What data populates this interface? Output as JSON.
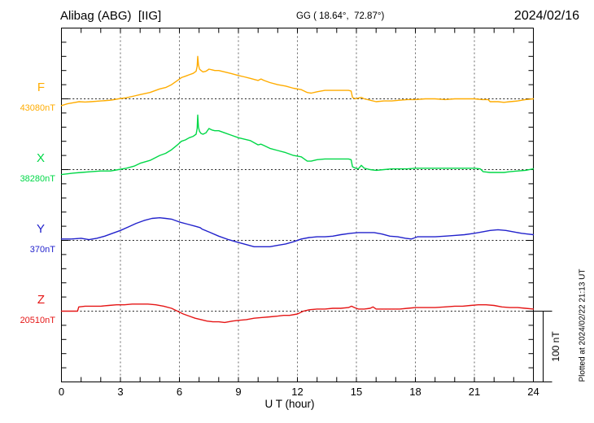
{
  "header": {
    "station": "Alibag (ABG)  [IIG]",
    "coords": "GG ( 18.64°,  72.87°)",
    "date": "2024/02/16"
  },
  "axes": {
    "xlabel": "U T (hour)",
    "x_ticks": [
      "0",
      "3",
      "6",
      "9",
      "12",
      "15",
      "18",
      "21",
      "24"
    ],
    "scale_bar_label": "100 nT",
    "plotted_at": "Plotted at 2024/02/22 21:13 UT"
  },
  "chart_data": {
    "type": "line",
    "title": "Alibag (ABG) [IIG] magnetogram — 2024/02/16",
    "xlabel": "U T (hour)",
    "x_range": [
      0,
      24
    ],
    "x_tick_interval_hours": 1,
    "x_gridline_interval_hours": 3,
    "y_small_tick_nT": 20,
    "baseline_spacing_nT": 100,
    "grid": "dotted vertical lines every 3 h; dotted horizontal line at each component baseline",
    "legend_position": "left margin, one colored label per component",
    "values_are_offsets_nT_from_baseline": true,
    "series": [
      {
        "name": "F",
        "baseline_label": "43080nT",
        "baseline_nT": 43080,
        "color": "#ffac00",
        "points": [
          [
            0,
            -9.5
          ],
          [
            0.3,
            -7
          ],
          [
            0.6,
            -5.5
          ],
          [
            0.9,
            -4
          ],
          [
            1.2,
            -4.5
          ],
          [
            1.5,
            -4
          ],
          [
            2,
            -3
          ],
          [
            2.5,
            -2
          ],
          [
            2.9,
            0
          ],
          [
            3.3,
            1.5
          ],
          [
            3.7,
            4
          ],
          [
            4,
            6
          ],
          [
            4.5,
            9
          ],
          [
            5,
            14
          ],
          [
            5.3,
            16
          ],
          [
            5.6,
            20
          ],
          [
            5.9,
            26
          ],
          [
            6.1,
            30
          ],
          [
            6.3,
            32
          ],
          [
            6.5,
            34
          ],
          [
            6.7,
            36
          ],
          [
            6.85,
            39
          ],
          [
            6.9,
            46
          ],
          [
            6.93,
            60
          ],
          [
            6.97,
            48
          ],
          [
            7.02,
            42
          ],
          [
            7.1,
            40
          ],
          [
            7.2,
            38
          ],
          [
            7.35,
            39
          ],
          [
            7.5,
            42
          ],
          [
            7.65,
            41
          ],
          [
            7.8,
            40
          ],
          [
            8,
            40
          ],
          [
            8.3,
            38
          ],
          [
            8.6,
            36
          ],
          [
            9,
            33
          ],
          [
            9.3,
            31
          ],
          [
            9.6,
            29
          ],
          [
            10,
            26
          ],
          [
            10.15,
            28
          ],
          [
            10.3,
            26
          ],
          [
            10.6,
            23
          ],
          [
            11,
            20
          ],
          [
            11.4,
            18
          ],
          [
            11.8,
            15
          ],
          [
            12.2,
            13
          ],
          [
            12.5,
            9
          ],
          [
            12.7,
            8
          ],
          [
            13,
            10
          ],
          [
            13.4,
            12
          ],
          [
            13.8,
            12
          ],
          [
            14.2,
            12
          ],
          [
            14.6,
            12
          ],
          [
            14.73,
            11
          ],
          [
            14.8,
            2
          ],
          [
            14.95,
            0
          ],
          [
            15.1,
            1
          ],
          [
            15.25,
            2
          ],
          [
            15.4,
            0
          ],
          [
            15.7,
            -2
          ],
          [
            16,
            -4
          ],
          [
            16.4,
            -3
          ],
          [
            16.8,
            -3
          ],
          [
            17.2,
            -2
          ],
          [
            17.6,
            -1
          ],
          [
            18,
            -1
          ],
          [
            18.5,
            0
          ],
          [
            19,
            0
          ],
          [
            19.5,
            -1
          ],
          [
            20,
            0
          ],
          [
            20.5,
            0
          ],
          [
            21,
            0
          ],
          [
            21.4,
            -1
          ],
          [
            21.7,
            -1
          ],
          [
            21.8,
            -4
          ],
          [
            22.2,
            -4
          ],
          [
            22.5,
            -5
          ],
          [
            22.8,
            -4
          ],
          [
            23.2,
            -3
          ],
          [
            23.6,
            -1
          ],
          [
            24,
            0
          ]
        ]
      },
      {
        "name": "X",
        "baseline_label": "38280nT",
        "baseline_nT": 38280,
        "color": "#00d847",
        "points": [
          [
            0,
            -7
          ],
          [
            0.3,
            -6
          ],
          [
            0.6,
            -5
          ],
          [
            1,
            -4
          ],
          [
            1.5,
            -3
          ],
          [
            2,
            -2
          ],
          [
            2.5,
            -2
          ],
          [
            2.9,
            0
          ],
          [
            3.3,
            2
          ],
          [
            3.7,
            5
          ],
          [
            4,
            9
          ],
          [
            4.5,
            13
          ],
          [
            5,
            20
          ],
          [
            5.3,
            23
          ],
          [
            5.6,
            28
          ],
          [
            5.9,
            35
          ],
          [
            6.1,
            40
          ],
          [
            6.3,
            42
          ],
          [
            6.5,
            45
          ],
          [
            6.7,
            47
          ],
          [
            6.85,
            50
          ],
          [
            6.9,
            58
          ],
          [
            6.93,
            77
          ],
          [
            6.97,
            60
          ],
          [
            7.02,
            54
          ],
          [
            7.1,
            51
          ],
          [
            7.2,
            50
          ],
          [
            7.35,
            52
          ],
          [
            7.5,
            58
          ],
          [
            7.65,
            56
          ],
          [
            7.8,
            55
          ],
          [
            8,
            55
          ],
          [
            8.3,
            52
          ],
          [
            8.6,
            49
          ],
          [
            9,
            45
          ],
          [
            9.3,
            43
          ],
          [
            9.6,
            41
          ],
          [
            10,
            35
          ],
          [
            10.15,
            36
          ],
          [
            10.3,
            34
          ],
          [
            10.6,
            30
          ],
          [
            11,
            27
          ],
          [
            11.4,
            24
          ],
          [
            11.8,
            20
          ],
          [
            12.2,
            18
          ],
          [
            12.5,
            12
          ],
          [
            12.7,
            12
          ],
          [
            13,
            14
          ],
          [
            13.4,
            15
          ],
          [
            13.8,
            15
          ],
          [
            14.2,
            15
          ],
          [
            14.6,
            15
          ],
          [
            14.73,
            14
          ],
          [
            14.8,
            4
          ],
          [
            14.95,
            2
          ],
          [
            15.1,
            1
          ],
          [
            15.25,
            6
          ],
          [
            15.4,
            2
          ],
          [
            15.7,
            0
          ],
          [
            16,
            -1
          ],
          [
            16.4,
            0
          ],
          [
            16.8,
            1
          ],
          [
            17.2,
            1
          ],
          [
            17.6,
            1
          ],
          [
            18,
            2
          ],
          [
            18.5,
            2
          ],
          [
            19,
            2
          ],
          [
            19.5,
            2
          ],
          [
            20,
            2
          ],
          [
            20.5,
            2
          ],
          [
            21,
            2
          ],
          [
            21.3,
            1
          ],
          [
            21.45,
            -3
          ],
          [
            21.8,
            -4
          ],
          [
            22.2,
            -4
          ],
          [
            22.5,
            -4
          ],
          [
            22.8,
            -3
          ],
          [
            23.2,
            -2
          ],
          [
            23.6,
            -1
          ],
          [
            24,
            1
          ]
        ]
      },
      {
        "name": "Y",
        "baseline_label": "370nT",
        "baseline_nT": 370,
        "color": "#2222cc",
        "points": [
          [
            0,
            2
          ],
          [
            0.5,
            2
          ],
          [
            1,
            3
          ],
          [
            1.4,
            1
          ],
          [
            1.8,
            3
          ],
          [
            2.2,
            6
          ],
          [
            2.6,
            10
          ],
          [
            3,
            14
          ],
          [
            3.4,
            19
          ],
          [
            3.8,
            24
          ],
          [
            4.2,
            28
          ],
          [
            4.6,
            31
          ],
          [
            5,
            32
          ],
          [
            5.3,
            31
          ],
          [
            5.6,
            30
          ],
          [
            6,
            26
          ],
          [
            6.4,
            23
          ],
          [
            6.8,
            20
          ],
          [
            7.05,
            18
          ],
          [
            7.15,
            16
          ],
          [
            7.5,
            12
          ],
          [
            8,
            6
          ],
          [
            8.5,
            1
          ],
          [
            9,
            -3
          ],
          [
            9.4,
            -6
          ],
          [
            9.8,
            -9
          ],
          [
            10.2,
            -9
          ],
          [
            10.6,
            -9
          ],
          [
            11,
            -7
          ],
          [
            11.4,
            -5
          ],
          [
            11.8,
            -2
          ],
          [
            12.2,
            2
          ],
          [
            12.6,
            4
          ],
          [
            13,
            5
          ],
          [
            13.4,
            5
          ],
          [
            13.8,
            6
          ],
          [
            14.2,
            8
          ],
          [
            14.7,
            10
          ],
          [
            15.1,
            11
          ],
          [
            15.5,
            11
          ],
          [
            15.9,
            11
          ],
          [
            16.3,
            9
          ],
          [
            16.7,
            6
          ],
          [
            17.1,
            5
          ],
          [
            17.5,
            3
          ],
          [
            17.8,
            2
          ],
          [
            18.1,
            5
          ],
          [
            18.5,
            5
          ],
          [
            19,
            5
          ],
          [
            19.5,
            6
          ],
          [
            20,
            7
          ],
          [
            20.5,
            8
          ],
          [
            21,
            10
          ],
          [
            21.4,
            12
          ],
          [
            21.8,
            14
          ],
          [
            22.2,
            15
          ],
          [
            22.6,
            14
          ],
          [
            23,
            12
          ],
          [
            23.4,
            10
          ],
          [
            23.7,
            9
          ],
          [
            24,
            8
          ]
        ]
      },
      {
        "name": "Z",
        "baseline_label": "20510nT",
        "baseline_nT": 20510,
        "color": "#e51616",
        "points": [
          [
            0,
            0
          ],
          [
            0.4,
            0
          ],
          [
            0.82,
            0
          ],
          [
            0.88,
            6
          ],
          [
            1.2,
            7
          ],
          [
            1.6,
            7
          ],
          [
            2,
            7
          ],
          [
            2.4,
            8
          ],
          [
            2.8,
            9
          ],
          [
            3.2,
            9
          ],
          [
            3.6,
            10
          ],
          [
            4,
            10
          ],
          [
            4.4,
            10
          ],
          [
            4.8,
            9
          ],
          [
            5.2,
            7
          ],
          [
            5.6,
            4
          ],
          [
            5.9,
            0
          ],
          [
            6.2,
            -4
          ],
          [
            6.5,
            -7
          ],
          [
            6.8,
            -10
          ],
          [
            7.1,
            -12
          ],
          [
            7.4,
            -14
          ],
          [
            7.7,
            -15
          ],
          [
            8,
            -15
          ],
          [
            8.3,
            -16
          ],
          [
            8.7,
            -14
          ],
          [
            9,
            -13
          ],
          [
            9.4,
            -12
          ],
          [
            9.8,
            -10
          ],
          [
            10.2,
            -9
          ],
          [
            10.6,
            -8
          ],
          [
            11,
            -7
          ],
          [
            11.3,
            -6
          ],
          [
            11.6,
            -6
          ],
          [
            12,
            -4
          ],
          [
            12.3,
            0
          ],
          [
            12.6,
            2
          ],
          [
            13,
            3
          ],
          [
            13.4,
            3
          ],
          [
            13.8,
            4
          ],
          [
            14.2,
            4
          ],
          [
            14.6,
            5
          ],
          [
            14.75,
            7
          ],
          [
            14.9,
            5
          ],
          [
            15.1,
            3
          ],
          [
            15.4,
            3
          ],
          [
            15.7,
            4
          ],
          [
            15.85,
            6
          ],
          [
            16,
            3
          ],
          [
            16.4,
            3
          ],
          [
            16.8,
            3
          ],
          [
            17.2,
            3
          ],
          [
            17.6,
            4
          ],
          [
            18,
            5
          ],
          [
            18.5,
            5
          ],
          [
            19,
            5
          ],
          [
            19.5,
            6
          ],
          [
            20,
            7
          ],
          [
            20.4,
            7
          ],
          [
            20.8,
            8
          ],
          [
            21.2,
            9
          ],
          [
            21.6,
            9
          ],
          [
            22,
            8
          ],
          [
            22.4,
            6
          ],
          [
            22.8,
            5
          ],
          [
            23.2,
            5
          ],
          [
            23.6,
            4
          ],
          [
            24,
            3
          ]
        ]
      }
    ]
  }
}
